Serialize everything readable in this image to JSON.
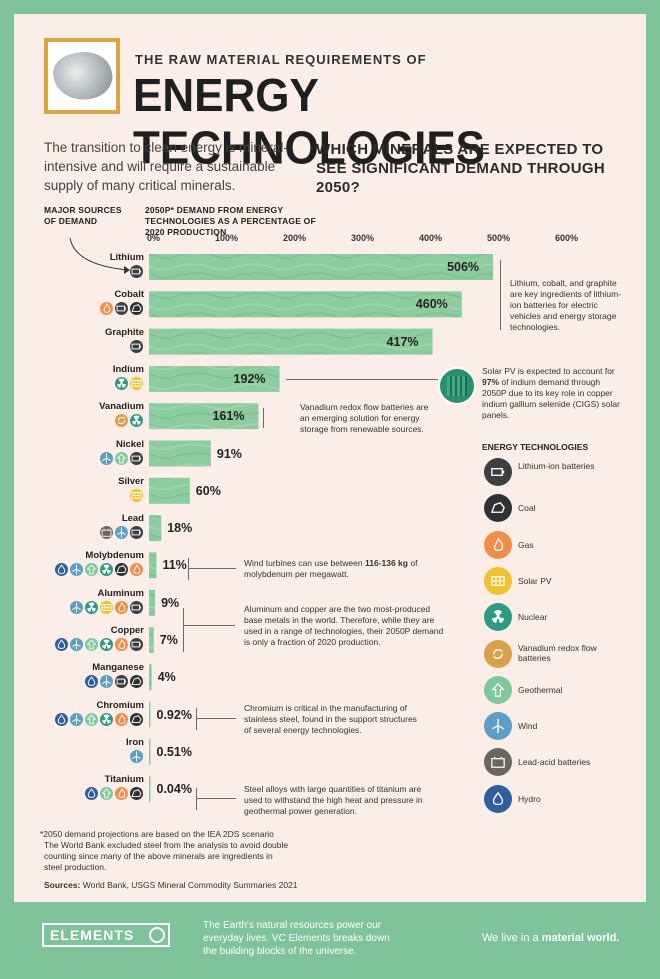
{
  "header": {
    "kicker": "THE RAW MATERIAL REQUIREMENTS OF",
    "title": "ENERGY TECHNOLOGIES",
    "intro": "The transition to clean energy is mineral-intensive and will require a sustainable supply of many critical minerals.",
    "question": "WHICH MINERALS ARE EXPECTED TO SEE SIGNIFICANT DEMAND THROUGH 2050?"
  },
  "columns": {
    "sources": "MAJOR SOURCES OF DEMAND",
    "demand": "2050P* DEMAND FROM ENERGY TECHNOLOGIES AS A PERCENTAGE OF 2020 PRODUCTION"
  },
  "chart_data": {
    "type": "bar",
    "orientation": "horizontal",
    "ylabel": "2050P* DEMAND FROM ENERGY TECHNOLOGIES AS A PERCENTAGE OF 2020 PRODUCTION",
    "xlim": [
      0,
      600
    ],
    "ticks": [
      "0%",
      "100%",
      "200%",
      "300%",
      "400%",
      "500%",
      "600%"
    ],
    "categories": [
      "Lithium",
      "Cobalt",
      "Graphite",
      "Indium",
      "Vanadium",
      "Nickel",
      "Silver",
      "Lead",
      "Molybdenum",
      "Aluminum",
      "Copper",
      "Manganese",
      "Chromium",
      "Iron",
      "Titanium"
    ],
    "values": [
      506,
      460,
      417,
      192,
      161,
      91,
      60,
      18,
      11,
      9,
      7,
      4,
      0.92,
      0.51,
      0.04
    ],
    "labels": [
      "506%",
      "460%",
      "417%",
      "192%",
      "161%",
      "91%",
      "60%",
      "18%",
      "11%",
      "9%",
      "7%",
      "4%",
      "0.92%",
      "0.51%",
      "0.04%"
    ],
    "sources": [
      [
        "liion"
      ],
      [
        "gas",
        "liion",
        "coal"
      ],
      [
        "liion"
      ],
      [
        "nuclear",
        "solar"
      ],
      [
        "vanadium",
        "nuclear"
      ],
      [
        "wind",
        "geothermal",
        "liion"
      ],
      [
        "solar"
      ],
      [
        "leadacid",
        "wind",
        "liion"
      ],
      [
        "hydro",
        "wind",
        "geothermal",
        "nuclear",
        "coal",
        "gas"
      ],
      [
        "wind",
        "nuclear",
        "solar",
        "gas",
        "liion"
      ],
      [
        "hydro",
        "wind",
        "geothermal",
        "nuclear",
        "gas",
        "liion"
      ],
      [
        "hydro",
        "wind",
        "liion",
        "coal"
      ],
      [
        "hydro",
        "wind",
        "geothermal",
        "nuclear",
        "gas",
        "coal"
      ],
      [
        "wind"
      ],
      [
        "hydro",
        "geothermal",
        "gas",
        "coal"
      ]
    ],
    "grid": false
  },
  "notes": {
    "lithium": "Lithium, cobalt, and graphite are key ingredients of lithium-ion batteries for electric vehicles and energy storage technologies.",
    "indium_a": "Solar PV is expected to account for ",
    "indium_b": "97%",
    "indium_c": " of indium demand through 2050P due to its key role in copper indium gallium selenide (CIGS) solar panels.",
    "vanadium": "Vanadium redox flow batteries are an emerging solution for energy storage from renewable sources.",
    "moly_a": "Wind turbines can use between ",
    "moly_b": "116-136 kg",
    "moly_c": " of molybdenum per megawatt.",
    "aluminum": "Aluminum and copper are the two most-produced base metals in the world. Therefore, while they are used in a range of technologies, their 2050P demand is only a fraction of 2020 production.",
    "chromium": "Chromium is critical in the manufacturing of stainless steel, found in the support structures of several energy technologies.",
    "titanium": "Steel alloys with large quantities of titanium are used to withstand the high heat and pressure in geothermal power generation."
  },
  "legend": {
    "title": "ENERGY TECHNOLOGIES",
    "items": [
      {
        "key": "liion",
        "label": "Lithium-ion batteries",
        "color": "#3b3f42"
      },
      {
        "key": "coal",
        "label": "Coal",
        "color": "#2f3234"
      },
      {
        "key": "gas",
        "label": "Gas",
        "color": "#ef8d4a"
      },
      {
        "key": "solar",
        "label": "Solar PV",
        "color": "#f2c12e"
      },
      {
        "key": "nuclear",
        "label": "Nuclear",
        "color": "#2f9a83"
      },
      {
        "key": "vanadium",
        "label": "Vanadium redox flow batteries",
        "color": "#d8a04a"
      },
      {
        "key": "geothermal",
        "label": "Geothermal",
        "color": "#7fc89a"
      },
      {
        "key": "wind",
        "label": "Wind",
        "color": "#5c9ec6"
      },
      {
        "key": "leadacid",
        "label": "Lead-acid batteries",
        "color": "#6b6760"
      },
      {
        "key": "hydro",
        "label": "Hydro",
        "color": "#2f5f9e"
      }
    ]
  },
  "footnotes": {
    "f1": "*2050 demand projections are based on the IEA 2DS scenario",
    "f2": "The World Bank excluded steel from the analysis to avoid double counting since many of the above minerals are ingredients in steel production.",
    "sources_label": "Sources:",
    "sources": " World Bank, USGS Mineral Commodity Summaries 2021"
  },
  "footer": {
    "brand": "ELEMENTS",
    "tagline": "The Earth's natural resources power our everyday lives. VC Elements breaks down the building blocks of the universe.",
    "slogan_a": "We live in a ",
    "slogan_b": "material world."
  },
  "colors": {
    "bar": "#8ccc9f",
    "bar_dark": "#79bd8d",
    "accent": "#d9a441",
    "background": "#fbeee8",
    "frame": "#7ec39a"
  }
}
